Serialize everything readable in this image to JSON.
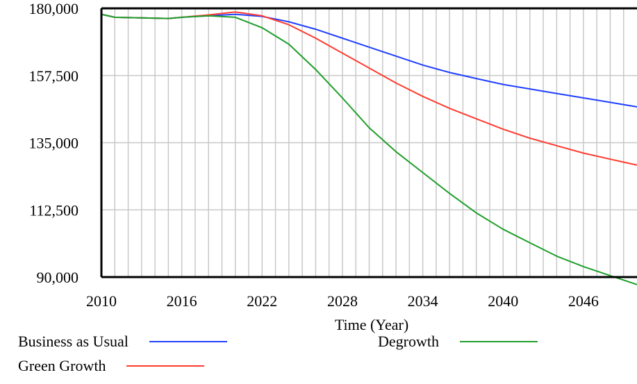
{
  "chart_data": {
    "type": "line",
    "title": "",
    "xlabel": "Time (Year)",
    "ylabel": "",
    "xlim": [
      2010,
      2050
    ],
    "ylim": [
      90000,
      180000
    ],
    "x_ticks": [
      "2010",
      "2016",
      "2022",
      "2028",
      "2034",
      "2040",
      "2046"
    ],
    "y_ticks": [
      "180,000",
      "157,500",
      "135,000",
      "112,500",
      "90,000"
    ],
    "grid": true,
    "legend_position": "bottom",
    "series": [
      {
        "name": "Business as Usual",
        "color": "#1f3fff",
        "x": [
          2010,
          2011,
          2013,
          2015,
          2016,
          2018,
          2020,
          2022,
          2024,
          2026,
          2028,
          2030,
          2032,
          2034,
          2036,
          2038,
          2040,
          2042,
          2044,
          2046,
          2048,
          2050
        ],
        "y": [
          178000,
          177000,
          176800,
          176600,
          177000,
          177500,
          178000,
          177300,
          175500,
          173000,
          170000,
          167000,
          164000,
          161000,
          158500,
          156500,
          154500,
          153000,
          151500,
          150000,
          148500,
          147000
        ]
      },
      {
        "name": "Green Growth",
        "color": "#ff3b2f",
        "x": [
          2010,
          2011,
          2013,
          2015,
          2016,
          2018,
          2020,
          2022,
          2024,
          2026,
          2028,
          2030,
          2032,
          2034,
          2036,
          2038,
          2040,
          2042,
          2044,
          2046,
          2048,
          2050
        ],
        "y": [
          178000,
          177000,
          176800,
          176600,
          177000,
          177800,
          178800,
          177500,
          174500,
          170000,
          165000,
          160000,
          155000,
          150500,
          146500,
          143000,
          139500,
          136500,
          134000,
          131500,
          129500,
          127500
        ]
      },
      {
        "name": "Degrowth",
        "color": "#1e9e2a",
        "x": [
          2010,
          2011,
          2013,
          2015,
          2016,
          2018,
          2020,
          2022,
          2024,
          2026,
          2028,
          2030,
          2032,
          2034,
          2036,
          2038,
          2040,
          2042,
          2044,
          2046,
          2048,
          2050
        ],
        "y": [
          178000,
          177000,
          176800,
          176600,
          177000,
          177500,
          177000,
          173500,
          168000,
          159500,
          150000,
          140000,
          132000,
          125000,
          118000,
          111500,
          106000,
          101500,
          97000,
          93500,
          90500,
          87500
        ]
      }
    ]
  }
}
